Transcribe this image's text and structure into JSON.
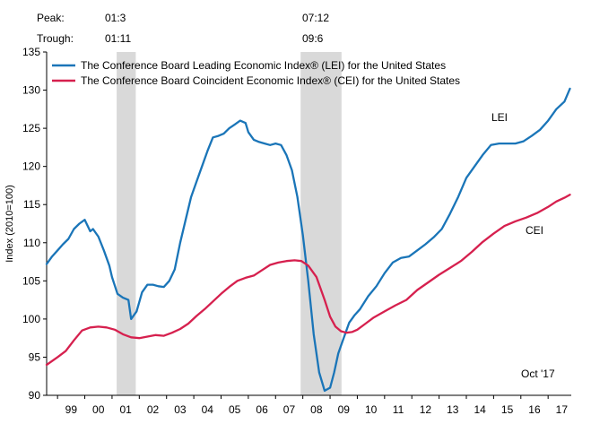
{
  "header": {
    "peak_label": "Peak:",
    "trough_label": "Trough:",
    "recessions": [
      {
        "peak": "01:3",
        "trough": "01:11"
      },
      {
        "peak": "07:12",
        "trough": "09:6"
      }
    ]
  },
  "chart_data": {
    "type": "line",
    "title": "",
    "xlabel": "",
    "ylabel": "Index (2010=100)",
    "ylim": [
      90,
      135
    ],
    "yticks": [
      90,
      95,
      100,
      105,
      110,
      115,
      120,
      125,
      130,
      135
    ],
    "xlim": [
      1998.6,
      2017.85
    ],
    "xtick_labels": [
      "99",
      "00",
      "01",
      "02",
      "03",
      "04",
      "05",
      "06",
      "07",
      "08",
      "09",
      "10",
      "11",
      "12",
      "13",
      "14",
      "15",
      "16",
      "17"
    ],
    "xtick_years": [
      1999,
      2000,
      2001,
      2002,
      2003,
      2004,
      2005,
      2006,
      2007,
      2008,
      2009,
      2010,
      2011,
      2012,
      2013,
      2014,
      2015,
      2016,
      2017
    ],
    "recession_spans": [
      [
        2001.17,
        2001.87
      ],
      [
        2007.92,
        2009.42
      ]
    ],
    "annotation": "Oct '17",
    "series_labels": {
      "lei": "LEI",
      "cei": "CEI"
    },
    "colors": {
      "lei": "#1a75b8",
      "cei": "#d6204e",
      "recession": "#d9d9d9"
    },
    "legend_position": "top-left",
    "series": [
      {
        "key": "lei",
        "name": "The Conference Board Leading Economic Index® (LEI) for the United States",
        "x": [
          1998.6,
          1998.8,
          1999.0,
          1999.2,
          1999.4,
          1999.6,
          1999.8,
          2000.0,
          2000.2,
          2000.3,
          2000.5,
          2000.7,
          2000.9,
          2001.0,
          2001.2,
          2001.4,
          2001.6,
          2001.7,
          2001.9,
          2002.1,
          2002.3,
          2002.5,
          2002.7,
          2002.9,
          2003.1,
          2003.3,
          2003.5,
          2003.7,
          2003.9,
          2004.1,
          2004.3,
          2004.5,
          2004.7,
          2004.9,
          2005.1,
          2005.3,
          2005.5,
          2005.7,
          2005.9,
          2006.0,
          2006.2,
          2006.4,
          2006.6,
          2006.8,
          2007.0,
          2007.2,
          2007.4,
          2007.6,
          2007.8,
          2008.0,
          2008.2,
          2008.4,
          2008.6,
          2008.8,
          2009.0,
          2009.15,
          2009.3,
          2009.5,
          2009.7,
          2009.9,
          2010.1,
          2010.4,
          2010.7,
          2011.0,
          2011.3,
          2011.6,
          2011.9,
          2012.2,
          2012.5,
          2012.8,
          2013.1,
          2013.4,
          2013.7,
          2014.0,
          2014.3,
          2014.6,
          2014.9,
          2015.2,
          2015.5,
          2015.8,
          2016.1,
          2016.4,
          2016.7,
          2017.0,
          2017.3,
          2017.6,
          2017.8
        ],
        "values": [
          107.2,
          108.2,
          109.0,
          109.8,
          110.5,
          111.8,
          112.5,
          113.0,
          111.5,
          111.8,
          110.8,
          109.0,
          107.0,
          105.5,
          103.3,
          102.8,
          102.5,
          100.0,
          101.0,
          103.5,
          104.5,
          104.5,
          104.3,
          104.2,
          105.0,
          106.5,
          110.0,
          113.0,
          116.0,
          118.0,
          120.0,
          122.0,
          123.8,
          124.0,
          124.3,
          125.0,
          125.5,
          126.0,
          125.7,
          124.5,
          123.5,
          123.2,
          123.0,
          122.8,
          123.0,
          122.8,
          121.5,
          119.5,
          116.0,
          111.0,
          105.0,
          98.0,
          93.0,
          90.6,
          91.0,
          93.0,
          95.5,
          97.5,
          99.5,
          100.5,
          101.3,
          103.0,
          104.3,
          106.0,
          107.4,
          108.0,
          108.2,
          109.0,
          109.8,
          110.7,
          111.8,
          113.8,
          116.0,
          118.5,
          120.0,
          121.5,
          122.8,
          123.0,
          123.0,
          123.0,
          123.3,
          124.0,
          124.8,
          126.0,
          127.5,
          128.5,
          130.2
        ]
      },
      {
        "key": "cei",
        "name": "The Conference Board Coincident Economic Index® (CEI) for the United States",
        "x": [
          1998.6,
          1999.0,
          1999.3,
          1999.6,
          1999.9,
          2000.2,
          2000.5,
          2000.8,
          2001.1,
          2001.4,
          2001.7,
          2002.0,
          2002.3,
          2002.6,
          2002.9,
          2003.2,
          2003.5,
          2003.8,
          2004.1,
          2004.4,
          2004.7,
          2005.0,
          2005.3,
          2005.6,
          2005.9,
          2006.2,
          2006.5,
          2006.8,
          2007.1,
          2007.4,
          2007.7,
          2007.95,
          2008.2,
          2008.5,
          2008.8,
          2009.0,
          2009.2,
          2009.4,
          2009.6,
          2009.8,
          2010.0,
          2010.3,
          2010.6,
          2011.0,
          2011.4,
          2011.8,
          2012.2,
          2012.6,
          2013.0,
          2013.4,
          2013.8,
          2014.2,
          2014.6,
          2015.0,
          2015.4,
          2015.8,
          2016.2,
          2016.6,
          2017.0,
          2017.3,
          2017.6,
          2017.8
        ],
        "values": [
          94.0,
          95.0,
          95.8,
          97.2,
          98.5,
          98.9,
          99.0,
          98.9,
          98.6,
          98.0,
          97.6,
          97.5,
          97.7,
          97.9,
          97.8,
          98.2,
          98.7,
          99.4,
          100.4,
          101.3,
          102.3,
          103.3,
          104.2,
          105.0,
          105.4,
          105.7,
          106.4,
          107.1,
          107.4,
          107.6,
          107.7,
          107.6,
          107.0,
          105.5,
          102.5,
          100.3,
          99.0,
          98.4,
          98.2,
          98.3,
          98.6,
          99.4,
          100.2,
          101.0,
          101.8,
          102.5,
          103.8,
          104.8,
          105.8,
          106.7,
          107.6,
          108.8,
          110.1,
          111.2,
          112.2,
          112.8,
          113.3,
          113.9,
          114.7,
          115.4,
          115.9,
          116.3
        ]
      }
    ]
  }
}
